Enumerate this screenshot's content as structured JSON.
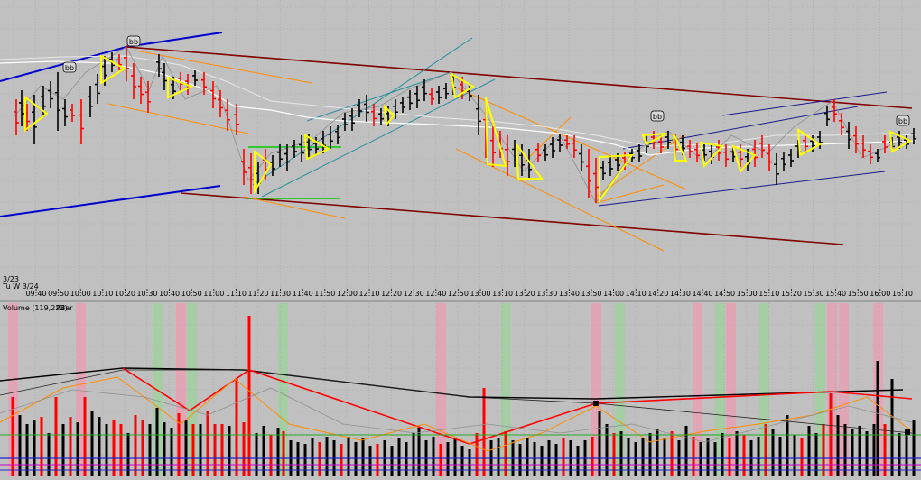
{
  "chart_data": [
    {
      "type": "candlestick",
      "panel": "price",
      "date_labels": [
        "3/23",
        "Tu  W  3/24"
      ],
      "x_tick_labels": [
        "09:40",
        "09:50",
        "10:00",
        "10:10",
        "10:20",
        "10:30",
        "10:40",
        "10:50",
        "11:00",
        "11:10",
        "11:20",
        "11:30",
        "11:40",
        "11:50",
        "12:00",
        "12:10",
        "12:20",
        "12:30",
        "12:40",
        "12:50",
        "13:00",
        "13:10",
        "13:20",
        "13:30",
        "13:40",
        "13:50",
        "14:00",
        "14:10",
        "14:20",
        "14:30",
        "14:40",
        "14:50",
        "15:00",
        "15:10",
        "15:20",
        "15:30",
        "15:40",
        "15:50",
        "16:00",
        "16:10"
      ],
      "annotations": [
        "bb",
        "bb",
        "bb",
        "bb"
      ],
      "grid": true,
      "colors": {
        "up": "#000000",
        "down": "#ff0000",
        "pattern": "#ffff00",
        "trend_outer": "#0000cc",
        "trend_channel": "#800000",
        "moving_average": "#ffffff",
        "fib": "#ff8c00",
        "channel_teal": "#2a8fa0",
        "level": "#00cc00",
        "channel_navy": "#1a1a8c"
      }
    },
    {
      "type": "bar",
      "panel": "volume",
      "title": "Volume (119,223)",
      "subtitle": "PBar",
      "colors": {
        "up": "#000000",
        "down": "#ff0000",
        "highlight_pink": "#e8a0b4",
        "highlight_green": "#a0d0a0"
      }
    }
  ]
}
